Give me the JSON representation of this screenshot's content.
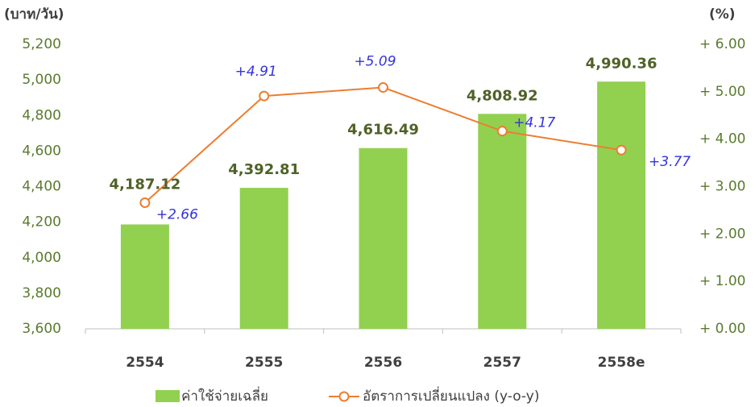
{
  "chart_data": {
    "type": "bar",
    "y_label": "(บาท/วัน)",
    "y2_label": "(%)",
    "categories": [
      "2554",
      "2555",
      "2556",
      "2557",
      "2558e"
    ],
    "series": [
      {
        "name": "ค่าใช้จ่ายเฉลี่ย",
        "type": "bar",
        "color": "#92d050",
        "values": [
          4187.12,
          4392.81,
          4616.49,
          4808.92,
          4990.36
        ],
        "value_labels": [
          "4,187.12",
          "4,392.81",
          "4,616.49",
          "4,808.92",
          "4,990.36"
        ]
      },
      {
        "name": "อัตราการเปลี่ยนแปลง (y-o-y)",
        "type": "line",
        "axis": "y2",
        "color": "#ed7d31",
        "values": [
          2.66,
          4.91,
          5.09,
          4.17,
          3.77
        ],
        "value_labels": [
          "+2.66",
          "+4.91",
          "+5.09",
          "+4.17",
          "+3.77"
        ]
      }
    ],
    "ylim": [
      3600,
      5200
    ],
    "yticks": [
      {
        "value": 3600,
        "label": "3,600"
      },
      {
        "value": 3800,
        "label": "3,800"
      },
      {
        "value": 4000,
        "label": "4,000"
      },
      {
        "value": 4200,
        "label": "4,200"
      },
      {
        "value": 4400,
        "label": "4,400"
      },
      {
        "value": 4600,
        "label": "4,600"
      },
      {
        "value": 4800,
        "label": "4,800"
      },
      {
        "value": 5000,
        "label": "5,000"
      },
      {
        "value": 5200,
        "label": "5,200"
      }
    ],
    "y2lim": [
      0,
      6
    ],
    "y2ticks": [
      {
        "value": 0,
        "label": "+ 0.00"
      },
      {
        "value": 1,
        "label": "+ 1.00"
      },
      {
        "value": 2,
        "label": "+ 2.00"
      },
      {
        "value": 3,
        "label": "+ 3.00"
      },
      {
        "value": 4,
        "label": "+ 4.00"
      },
      {
        "value": 5,
        "label": "+ 5.00"
      },
      {
        "value": 6,
        "label": "+ 6.00"
      }
    ],
    "legend": "bottom"
  }
}
